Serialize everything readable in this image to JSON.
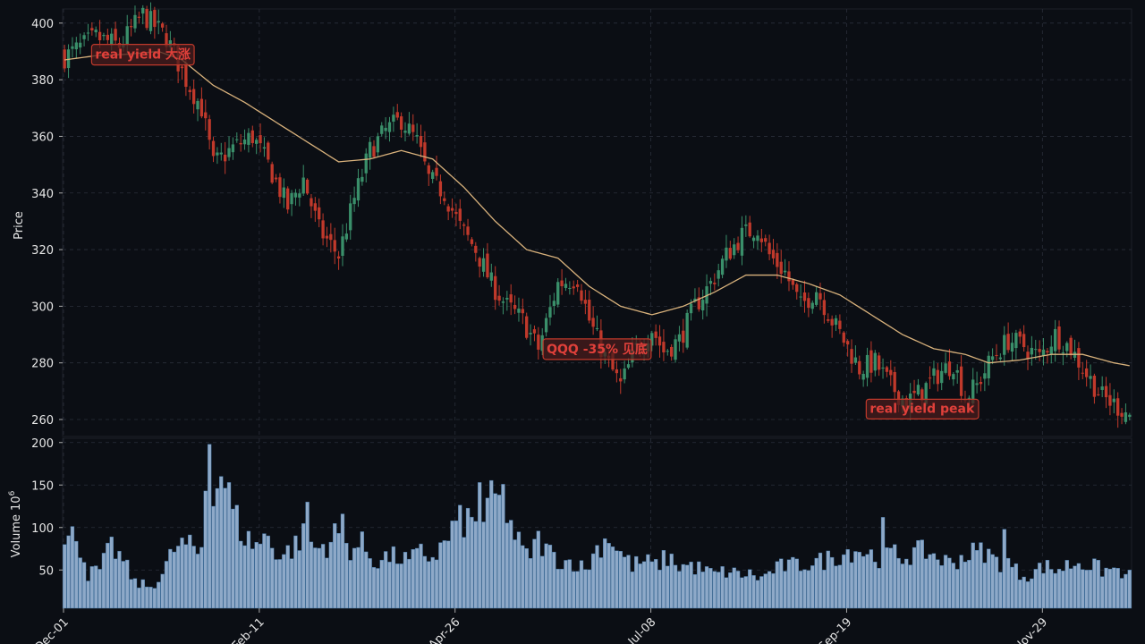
{
  "chart_data": [
    {
      "type": "candlestick",
      "panel": "price",
      "ylabel": "Price",
      "ylim": [
        254,
        405
      ],
      "yticks": [
        260,
        280,
        300,
        320,
        340,
        360,
        380,
        400
      ],
      "grid": true,
      "colors": {
        "up": "#3a8f6a",
        "down": "#c0392b",
        "ma": "#d9b27c",
        "grid": "#2a2f3a",
        "panel_bg": "#0b0e14"
      },
      "xticks": [
        {
          "i": 0,
          "label": "Dec-01"
        },
        {
          "i": 50,
          "label": "Feb-11"
        },
        {
          "i": 100,
          "label": "Apr-26"
        },
        {
          "i": 150,
          "label": "Jul-08"
        },
        {
          "i": 200,
          "label": "Sep-19"
        },
        {
          "i": 250,
          "label": "Nov-29"
        }
      ],
      "close_anchors": [
        [
          0,
          388
        ],
        [
          8,
          395
        ],
        [
          14,
          392
        ],
        [
          20,
          403
        ],
        [
          26,
          395
        ],
        [
          31,
          380
        ],
        [
          35,
          370
        ],
        [
          38,
          350
        ],
        [
          43,
          356
        ],
        [
          48,
          360
        ],
        [
          52,
          350
        ],
        [
          57,
          335
        ],
        [
          61,
          345
        ],
        [
          65,
          327
        ],
        [
          70,
          318
        ],
        [
          74,
          338
        ],
        [
          78,
          355
        ],
        [
          82,
          362
        ],
        [
          86,
          366
        ],
        [
          90,
          358
        ],
        [
          93,
          345
        ],
        [
          97,
          340
        ],
        [
          101,
          328
        ],
        [
          105,
          320
        ],
        [
          109,
          308
        ],
        [
          113,
          300
        ],
        [
          117,
          295
        ],
        [
          121,
          285
        ],
        [
          126,
          308
        ],
        [
          131,
          310
        ],
        [
          134,
          295
        ],
        [
          138,
          282
        ],
        [
          142,
          272
        ],
        [
          146,
          285
        ],
        [
          150,
          292
        ],
        [
          153,
          284
        ],
        [
          157,
          288
        ],
        [
          161,
          300
        ],
        [
          165,
          308
        ],
        [
          169,
          318
        ],
        [
          173,
          325
        ],
        [
          177,
          328
        ],
        [
          180,
          318
        ],
        [
          184,
          312
        ],
        [
          188,
          300
        ],
        [
          192,
          306
        ],
        [
          196,
          295
        ],
        [
          199,
          288
        ],
        [
          203,
          278
        ],
        [
          207,
          280
        ],
        [
          211,
          272
        ],
        [
          215,
          266
        ],
        [
          219,
          270
        ],
        [
          223,
          276
        ],
        [
          227,
          280
        ],
        [
          230,
          268
        ],
        [
          233,
          272
        ],
        [
          237,
          282
        ],
        [
          241,
          288
        ],
        [
          245,
          286
        ],
        [
          249,
          282
        ],
        [
          253,
          290
        ],
        [
          257,
          285
        ],
        [
          261,
          276
        ],
        [
          265,
          268
        ],
        [
          272,
          262
        ]
      ],
      "ma_anchors": [
        [
          0,
          387
        ],
        [
          8,
          388.5
        ],
        [
          16,
          389
        ],
        [
          24,
          390
        ],
        [
          30,
          387
        ],
        [
          38,
          378
        ],
        [
          46,
          372
        ],
        [
          54,
          365
        ],
        [
          62,
          358
        ],
        [
          70,
          351
        ],
        [
          78,
          352
        ],
        [
          86,
          355
        ],
        [
          94,
          352
        ],
        [
          102,
          342
        ],
        [
          110,
          330
        ],
        [
          118,
          320
        ],
        [
          126,
          317
        ],
        [
          134,
          307
        ],
        [
          142,
          300
        ],
        [
          150,
          297
        ],
        [
          158,
          300
        ],
        [
          166,
          305
        ],
        [
          174,
          311
        ],
        [
          182,
          311
        ],
        [
          190,
          308
        ],
        [
          198,
          304
        ],
        [
          206,
          297
        ],
        [
          214,
          290
        ],
        [
          222,
          285
        ],
        [
          230,
          283
        ],
        [
          236,
          280
        ],
        [
          244,
          281
        ],
        [
          252,
          283
        ],
        [
          260,
          283
        ],
        [
          268,
          280
        ],
        [
          272,
          279
        ]
      ],
      "annotations": [
        {
          "text": "real yield 大涨",
          "i": 20,
          "y": 389
        },
        {
          "text": "QQQ -35% 见底",
          "i": 136,
          "y": 285
        },
        {
          "text": "real yield peak",
          "i": 219,
          "y": 264
        }
      ]
    },
    {
      "type": "bar",
      "panel": "volume",
      "ylabel_base": "Volume",
      "ylabel_unit": "10",
      "ylabel_exp": "6",
      "ylim": [
        5,
        205
      ],
      "yticks": [
        50,
        100,
        150,
        200
      ],
      "color": "#8ea9c8",
      "vol_anchors": [
        [
          0,
          78
        ],
        [
          3,
          95
        ],
        [
          6,
          45
        ],
        [
          9,
          50
        ],
        [
          12,
          78
        ],
        [
          15,
          60
        ],
        [
          18,
          35
        ],
        [
          22,
          30
        ],
        [
          25,
          45
        ],
        [
          28,
          75
        ],
        [
          31,
          80
        ],
        [
          34,
          70
        ],
        [
          37,
          90
        ],
        [
          40,
          170
        ],
        [
          43,
          120
        ],
        [
          46,
          88
        ],
        [
          49,
          80
        ],
        [
          52,
          90
        ],
        [
          55,
          65
        ],
        [
          58,
          75
        ],
        [
          61,
          90
        ],
        [
          64,
          75
        ],
        [
          67,
          80
        ],
        [
          70,
          95
        ],
        [
          73,
          75
        ],
        [
          76,
          80
        ],
        [
          79,
          60
        ],
        [
          82,
          65
        ],
        [
          85,
          65
        ],
        [
          88,
          60
        ],
        [
          91,
          70
        ],
        [
          94,
          65
        ],
        [
          97,
          80
        ],
        [
          100,
          105
        ],
        [
          103,
          108
        ],
        [
          106,
          100
        ],
        [
          109,
          130
        ],
        [
          112,
          135
        ],
        [
          115,
          90
        ],
        [
          118,
          65
        ],
        [
          121,
          85
        ],
        [
          124,
          70
        ],
        [
          127,
          60
        ],
        [
          130,
          60
        ],
        [
          133,
          50
        ],
        [
          136,
          75
        ],
        [
          139,
          90
        ],
        [
          142,
          70
        ],
        [
          145,
          55
        ],
        [
          148,
          60
        ],
        [
          151,
          55
        ],
        [
          154,
          65
        ],
        [
          157,
          55
        ],
        [
          160,
          55
        ],
        [
          163,
          50
        ],
        [
          166,
          45
        ],
        [
          169,
          48
        ],
        [
          172,
          45
        ],
        [
          175,
          45
        ],
        [
          178,
          40
        ],
        [
          181,
          50
        ],
        [
          184,
          55
        ],
        [
          187,
          55
        ],
        [
          190,
          58
        ],
        [
          193,
          60
        ],
        [
          196,
          65
        ],
        [
          199,
          70
        ],
        [
          202,
          75
        ],
        [
          205,
          70
        ],
        [
          208,
          65
        ],
        [
          211,
          70
        ],
        [
          214,
          65
        ],
        [
          217,
          70
        ],
        [
          220,
          72
        ],
        [
          223,
          65
        ],
        [
          226,
          58
        ],
        [
          229,
          65
        ],
        [
          232,
          70
        ],
        [
          235,
          72
        ],
        [
          238,
          60
        ],
        [
          241,
          58
        ],
        [
          244,
          45
        ],
        [
          247,
          45
        ],
        [
          250,
          55
        ],
        [
          253,
          50
        ],
        [
          256,
          55
        ],
        [
          259,
          60
        ],
        [
          262,
          55
        ],
        [
          265,
          50
        ],
        [
          269,
          50
        ],
        [
          272,
          45
        ]
      ],
      "vol_spikes": [
        [
          36,
          143
        ],
        [
          37,
          198
        ],
        [
          38,
          125
        ],
        [
          39,
          146
        ],
        [
          62,
          130
        ],
        [
          71,
          116
        ],
        [
          106,
          153
        ],
        [
          110,
          140
        ],
        [
          209,
          112
        ],
        [
          240,
          98
        ],
        [
          271,
          45
        ]
      ]
    }
  ]
}
